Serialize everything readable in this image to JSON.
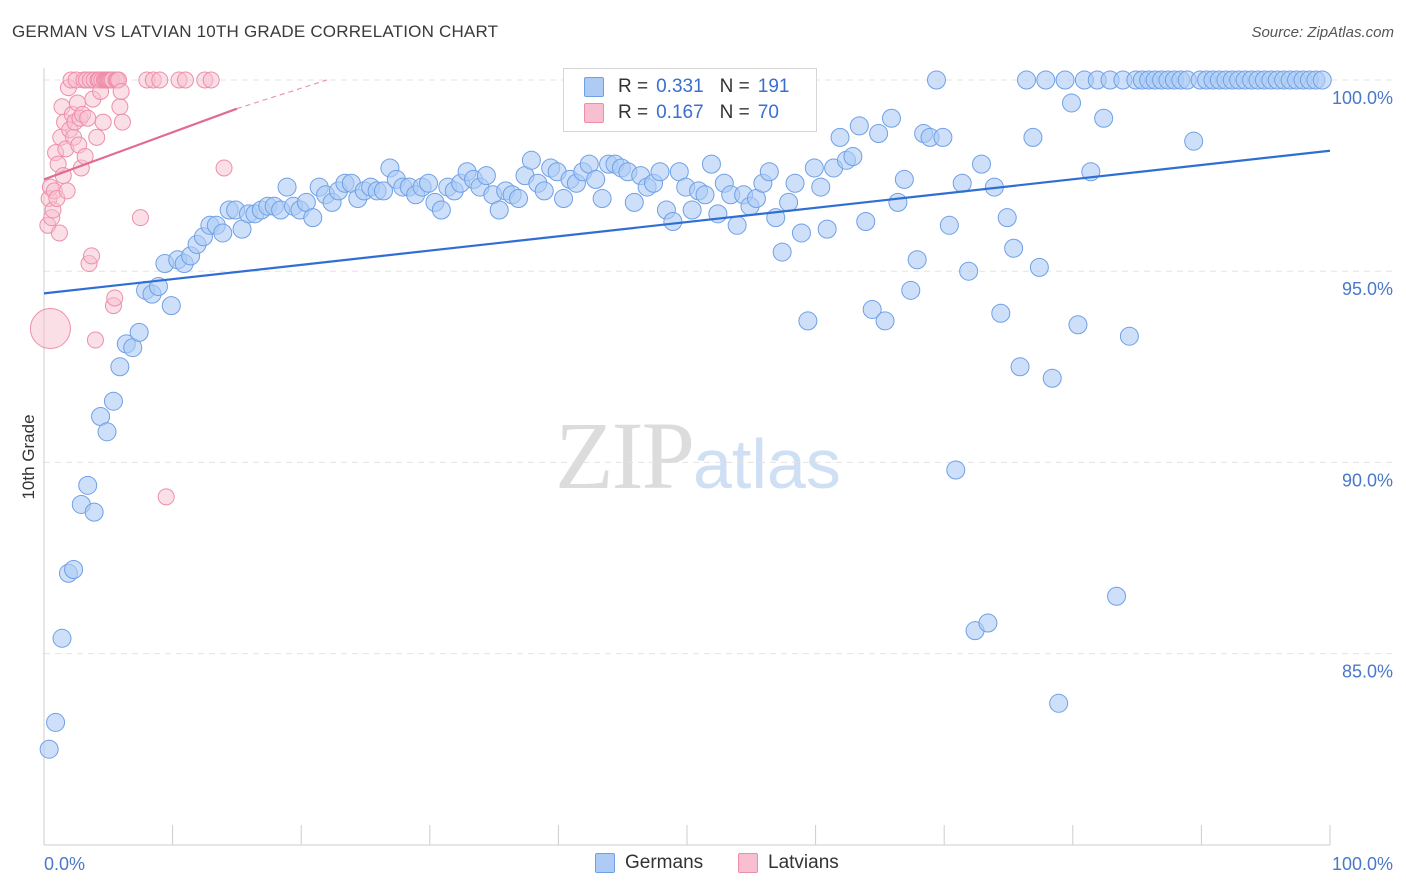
{
  "title": "GERMAN VS LATVIAN 10TH GRADE CORRELATION CHART",
  "source": "Source: ZipAtlas.com",
  "watermark": {
    "zip": "ZIP",
    "atlas": "atlas"
  },
  "legend": {
    "german": {
      "r_label": "R =",
      "r_value": "0.331",
      "n_label": "N =",
      "n_value": "191"
    },
    "latvian": {
      "r_label": "R =",
      "r_value": "0.167",
      "n_label": "N =",
      "n_value": "70"
    }
  },
  "bottom_legend": {
    "german": "Germans",
    "latvian": "Latvians"
  },
  "colors": {
    "german_fill": "#aecbf5",
    "german_stroke": "#6fa0e6",
    "german_line": "#2f6fd3",
    "latvian_fill": "#f7bfd0",
    "latvian_stroke": "#ee8eaa",
    "latvian_line": "#e26b93",
    "grid": "#e3e3e3",
    "tick_text": "#4a78c9"
  },
  "chart_data": {
    "type": "scatter",
    "title": "GERMAN VS LATVIAN 10TH GRADE CORRELATION CHART",
    "xlabel": "",
    "ylabel": "10th Grade",
    "xlim": [
      0,
      100
    ],
    "ylim": [
      80.0,
      100.7
    ],
    "x_tick_labels": [
      "0.0%",
      "100.0%"
    ],
    "y_ticks": [
      85,
      90,
      95,
      100
    ],
    "y_tick_labels": [
      "85.0%",
      "90.0%",
      "95.0%",
      "100.0%"
    ],
    "grid": true,
    "series": [
      {
        "name": "Germans",
        "r": 0.331,
        "n": 191,
        "trend": {
          "x": [
            0,
            100
          ],
          "y": [
            94.42,
            98.15
          ]
        },
        "points": [
          [
            0.4,
            82.5
          ],
          [
            0.9,
            83.2
          ],
          [
            1.4,
            85.4
          ],
          [
            1.9,
            87.1
          ],
          [
            2.3,
            87.2
          ],
          [
            2.9,
            88.9
          ],
          [
            3.4,
            89.4
          ],
          [
            3.9,
            88.7
          ],
          [
            4.4,
            91.2
          ],
          [
            4.9,
            90.8
          ],
          [
            5.4,
            91.6
          ],
          [
            5.9,
            92.5
          ],
          [
            6.4,
            93.1
          ],
          [
            6.9,
            93.0
          ],
          [
            7.4,
            93.4
          ],
          [
            7.9,
            94.5
          ],
          [
            8.4,
            94.4
          ],
          [
            8.9,
            94.6
          ],
          [
            9.4,
            95.2
          ],
          [
            9.9,
            94.1
          ],
          [
            10.4,
            95.3
          ],
          [
            10.9,
            95.2
          ],
          [
            11.4,
            95.4
          ],
          [
            11.9,
            95.7
          ],
          [
            12.4,
            95.9
          ],
          [
            12.9,
            96.2
          ],
          [
            13.4,
            96.2
          ],
          [
            13.9,
            96.0
          ],
          [
            14.4,
            96.6
          ],
          [
            14.9,
            96.6
          ],
          [
            15.4,
            96.1
          ],
          [
            15.9,
            96.5
          ],
          [
            16.4,
            96.5
          ],
          [
            16.9,
            96.6
          ],
          [
            17.4,
            96.7
          ],
          [
            17.9,
            96.7
          ],
          [
            18.4,
            96.6
          ],
          [
            18.9,
            97.2
          ],
          [
            19.4,
            96.7
          ],
          [
            19.9,
            96.6
          ],
          [
            20.4,
            96.8
          ],
          [
            20.9,
            96.4
          ],
          [
            21.4,
            97.2
          ],
          [
            21.9,
            97.0
          ],
          [
            22.4,
            96.8
          ],
          [
            22.9,
            97.1
          ],
          [
            23.4,
            97.3
          ],
          [
            23.9,
            97.3
          ],
          [
            24.4,
            96.9
          ],
          [
            24.9,
            97.1
          ],
          [
            25.4,
            97.2
          ],
          [
            25.9,
            97.1
          ],
          [
            26.4,
            97.1
          ],
          [
            26.9,
            97.7
          ],
          [
            27.4,
            97.4
          ],
          [
            27.9,
            97.2
          ],
          [
            28.4,
            97.2
          ],
          [
            28.9,
            97.0
          ],
          [
            29.4,
            97.2
          ],
          [
            29.9,
            97.3
          ],
          [
            30.4,
            96.8
          ],
          [
            30.9,
            96.6
          ],
          [
            31.4,
            97.2
          ],
          [
            31.9,
            97.1
          ],
          [
            32.4,
            97.3
          ],
          [
            32.9,
            97.6
          ],
          [
            33.4,
            97.4
          ],
          [
            33.9,
            97.2
          ],
          [
            34.4,
            97.5
          ],
          [
            34.9,
            97.0
          ],
          [
            35.4,
            96.6
          ],
          [
            35.9,
            97.1
          ],
          [
            36.4,
            97.0
          ],
          [
            36.9,
            96.9
          ],
          [
            37.4,
            97.5
          ],
          [
            37.9,
            97.9
          ],
          [
            38.4,
            97.3
          ],
          [
            38.9,
            97.1
          ],
          [
            39.4,
            97.7
          ],
          [
            39.9,
            97.6
          ],
          [
            40.4,
            96.9
          ],
          [
            40.9,
            97.4
          ],
          [
            41.4,
            97.3
          ],
          [
            41.9,
            97.6
          ],
          [
            42.4,
            97.8
          ],
          [
            42.9,
            97.4
          ],
          [
            43.4,
            96.9
          ],
          [
            43.9,
            97.8
          ],
          [
            44.4,
            97.8
          ],
          [
            44.9,
            97.7
          ],
          [
            45.4,
            97.6
          ],
          [
            45.9,
            96.8
          ],
          [
            46.4,
            97.5
          ],
          [
            46.9,
            97.2
          ],
          [
            47.4,
            97.3
          ],
          [
            47.9,
            97.6
          ],
          [
            48.4,
            96.6
          ],
          [
            48.9,
            96.3
          ],
          [
            49.4,
            97.6
          ],
          [
            49.9,
            97.2
          ],
          [
            50.4,
            96.6
          ],
          [
            50.9,
            97.1
          ],
          [
            51.4,
            97.0
          ],
          [
            51.9,
            97.8
          ],
          [
            52.4,
            96.5
          ],
          [
            52.9,
            97.3
          ],
          [
            53.4,
            97.0
          ],
          [
            53.9,
            96.2
          ],
          [
            54.4,
            97.0
          ],
          [
            54.9,
            96.7
          ],
          [
            55.4,
            96.9
          ],
          [
            55.9,
            97.3
          ],
          [
            56.4,
            97.6
          ],
          [
            56.9,
            96.4
          ],
          [
            57.4,
            95.5
          ],
          [
            57.9,
            96.8
          ],
          [
            58.4,
            97.3
          ],
          [
            58.9,
            96.0
          ],
          [
            59.4,
            93.7
          ],
          [
            59.9,
            97.7
          ],
          [
            60.4,
            97.2
          ],
          [
            60.9,
            96.1
          ],
          [
            61.4,
            97.7
          ],
          [
            61.9,
            98.5
          ],
          [
            62.4,
            97.9
          ],
          [
            62.9,
            98.0
          ],
          [
            63.4,
            98.8
          ],
          [
            63.9,
            96.3
          ],
          [
            64.4,
            94.0
          ],
          [
            64.9,
            98.6
          ],
          [
            65.4,
            93.7
          ],
          [
            65.9,
            99.0
          ],
          [
            66.4,
            96.8
          ],
          [
            66.9,
            97.4
          ],
          [
            67.4,
            94.5
          ],
          [
            67.9,
            95.3
          ],
          [
            68.4,
            98.6
          ],
          [
            68.9,
            98.5
          ],
          [
            69.4,
            100.0
          ],
          [
            69.9,
            98.5
          ],
          [
            70.4,
            96.2
          ],
          [
            70.9,
            89.8
          ],
          [
            71.4,
            97.3
          ],
          [
            71.9,
            95.0
          ],
          [
            72.4,
            85.6
          ],
          [
            72.9,
            97.8
          ],
          [
            73.4,
            85.8
          ],
          [
            73.9,
            97.2
          ],
          [
            74.4,
            93.9
          ],
          [
            74.9,
            96.4
          ],
          [
            75.4,
            95.6
          ],
          [
            75.9,
            92.5
          ],
          [
            76.4,
            100.0
          ],
          [
            76.9,
            98.5
          ],
          [
            77.4,
            95.1
          ],
          [
            77.9,
            100.0
          ],
          [
            78.4,
            92.2
          ],
          [
            78.9,
            83.7
          ],
          [
            79.4,
            100.0
          ],
          [
            79.9,
            99.4
          ],
          [
            80.4,
            93.6
          ],
          [
            80.9,
            100.0
          ],
          [
            81.4,
            97.6
          ],
          [
            81.9,
            100.0
          ],
          [
            82.4,
            99.0
          ],
          [
            82.9,
            100.0
          ],
          [
            83.4,
            86.5
          ],
          [
            83.9,
            100.0
          ],
          [
            84.4,
            93.3
          ],
          [
            84.9,
            100.0
          ],
          [
            85.4,
            100.0
          ],
          [
            85.9,
            100.0
          ],
          [
            86.4,
            100.0
          ],
          [
            86.9,
            100.0
          ],
          [
            87.4,
            100.0
          ],
          [
            87.9,
            100.0
          ],
          [
            88.4,
            100.0
          ],
          [
            88.9,
            100.0
          ],
          [
            89.4,
            98.4
          ],
          [
            89.9,
            100.0
          ],
          [
            90.4,
            100.0
          ],
          [
            90.9,
            100.0
          ],
          [
            91.4,
            100.0
          ],
          [
            91.9,
            100.0
          ],
          [
            92.4,
            100.0
          ],
          [
            92.9,
            100.0
          ],
          [
            93.4,
            100.0
          ],
          [
            93.9,
            100.0
          ],
          [
            94.4,
            100.0
          ],
          [
            94.9,
            100.0
          ],
          [
            95.4,
            100.0
          ],
          [
            95.9,
            100.0
          ],
          [
            96.4,
            100.0
          ],
          [
            96.9,
            100.0
          ],
          [
            97.4,
            100.0
          ],
          [
            97.9,
            100.0
          ],
          [
            98.4,
            100.0
          ],
          [
            98.9,
            100.0
          ],
          [
            99.4,
            100.0
          ]
        ]
      },
      {
        "name": "Latvians",
        "r": 0.167,
        "n": 70,
        "trend": {
          "x": [
            0,
            15
          ],
          "y": [
            97.4,
            99.25
          ]
        },
        "trend_extension": {
          "x": [
            15,
            22
          ],
          "y": [
            99.25,
            100.0
          ]
        },
        "points": [
          [
            0.3,
            96.2
          ],
          [
            0.4,
            96.9
          ],
          [
            0.5,
            97.2
          ],
          [
            0.6,
            96.4
          ],
          [
            0.7,
            96.6
          ],
          [
            0.8,
            97.1
          ],
          [
            0.9,
            98.1
          ],
          [
            1.0,
            96.9
          ],
          [
            1.1,
            97.8
          ],
          [
            1.2,
            96.0
          ],
          [
            1.3,
            98.5
          ],
          [
            1.4,
            99.3
          ],
          [
            1.5,
            97.5
          ],
          [
            1.6,
            98.9
          ],
          [
            1.7,
            98.2
          ],
          [
            1.8,
            97.1
          ],
          [
            1.9,
            99.8
          ],
          [
            2.0,
            98.7
          ],
          [
            2.1,
            100.0
          ],
          [
            2.2,
            99.1
          ],
          [
            2.3,
            98.5
          ],
          [
            2.4,
            98.9
          ],
          [
            2.5,
            100.0
          ],
          [
            2.6,
            99.4
          ],
          [
            2.7,
            98.3
          ],
          [
            2.8,
            99.0
          ],
          [
            2.9,
            97.7
          ],
          [
            3.0,
            99.1
          ],
          [
            3.1,
            100.0
          ],
          [
            3.2,
            98.0
          ],
          [
            3.3,
            100.0
          ],
          [
            3.4,
            99.0
          ],
          [
            3.5,
            95.2
          ],
          [
            3.6,
            100.0
          ],
          [
            3.7,
            95.4
          ],
          [
            3.8,
            99.5
          ],
          [
            3.9,
            100.0
          ],
          [
            4.0,
            93.2
          ],
          [
            4.1,
            98.5
          ],
          [
            4.2,
            100.0
          ],
          [
            4.3,
            100.0
          ],
          [
            4.4,
            99.7
          ],
          [
            4.5,
            100.0
          ],
          [
            4.6,
            98.9
          ],
          [
            4.7,
            100.0
          ],
          [
            4.8,
            100.0
          ],
          [
            4.9,
            100.0
          ],
          [
            5.0,
            100.0
          ],
          [
            5.1,
            100.0
          ],
          [
            5.2,
            100.0
          ],
          [
            5.3,
            100.0
          ],
          [
            5.4,
            94.1
          ],
          [
            5.5,
            94.3
          ],
          [
            5.6,
            100.0
          ],
          [
            5.7,
            100.0
          ],
          [
            5.8,
            100.0
          ],
          [
            5.9,
            99.3
          ],
          [
            6.0,
            99.7
          ],
          [
            6.1,
            98.9
          ],
          [
            7.5,
            96.4
          ],
          [
            8.0,
            100.0
          ],
          [
            8.5,
            100.0
          ],
          [
            9.0,
            100.0
          ],
          [
            9.5,
            89.1
          ],
          [
            10.5,
            100.0
          ],
          [
            11.0,
            100.0
          ],
          [
            12.5,
            100.0
          ],
          [
            13.0,
            100.0
          ],
          [
            14.0,
            97.7
          ],
          [
            0.5,
            93.5
          ]
        ]
      }
    ]
  }
}
